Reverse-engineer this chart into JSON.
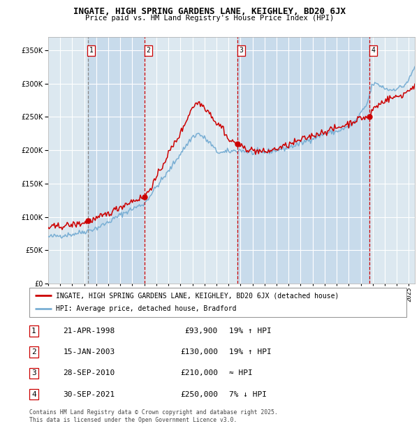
{
  "title": "INGATE, HIGH SPRING GARDENS LANE, KEIGHLEY, BD20 6JX",
  "subtitle": "Price paid vs. HM Land Registry's House Price Index (HPI)",
  "legend_line1": "INGATE, HIGH SPRING GARDENS LANE, KEIGHLEY, BD20 6JX (detached house)",
  "legend_line2": "HPI: Average price, detached house, Bradford",
  "footer1": "Contains HM Land Registry data © Crown copyright and database right 2025.",
  "footer2": "This data is licensed under the Open Government Licence v3.0.",
  "transactions": [
    {
      "num": 1,
      "date": "21-APR-1998",
      "price": 93900,
      "price_str": "£93,900",
      "change": "19% ↑ HPI"
    },
    {
      "num": 2,
      "date": "15-JAN-2003",
      "price": 130000,
      "price_str": "£130,000",
      "change": "19% ↑ HPI"
    },
    {
      "num": 3,
      "date": "28-SEP-2010",
      "price": 210000,
      "price_str": "£210,000",
      "change": "≈ HPI"
    },
    {
      "num": 4,
      "date": "30-SEP-2021",
      "price": 250000,
      "price_str": "£250,000",
      "change": "7% ↓ HPI"
    }
  ],
  "vline_dates": [
    1998.29,
    2003.04,
    2010.75,
    2021.75
  ],
  "red_color": "#cc0000",
  "blue_color": "#7aafd4",
  "bg_color": "#dce8f0",
  "shade_color": "#c4d8ea",
  "grid_color": "#ffffff",
  "ylim": [
    0,
    370000
  ],
  "xlim_start": 1995.0,
  "xlim_end": 2025.5
}
